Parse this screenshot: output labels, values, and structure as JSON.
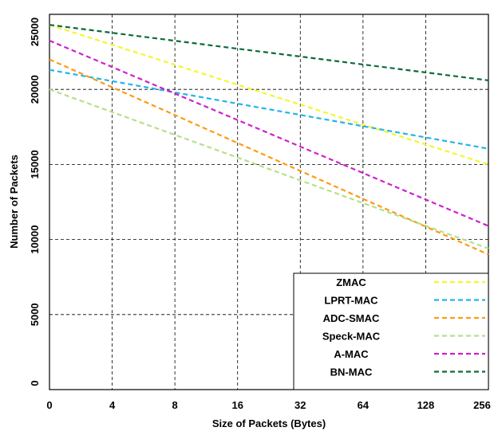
{
  "chart_data": {
    "type": "line",
    "xlabel": "Size of Packets (Bytes)",
    "ylabel": "Number of Packets",
    "categories": [
      "0",
      "4",
      "8",
      "16",
      "32",
      "64",
      "128",
      "256"
    ],
    "series": [
      {
        "name": "ZMAC",
        "color": "#f5f52e",
        "values": [
          24300,
          22970,
          21640,
          20310,
          18990,
          17660,
          16330,
          15000
        ]
      },
      {
        "name": "LPRT-MAC",
        "color": "#22b5e8",
        "values": [
          21300,
          20550,
          19800,
          19050,
          18300,
          17550,
          16800,
          16050
        ]
      },
      {
        "name": "ADC-SMAC",
        "color": "#ff9a10",
        "values": [
          22000,
          20140,
          18290,
          16430,
          14570,
          12710,
          10860,
          9000
        ]
      },
      {
        "name": "Speck-MAC",
        "color": "#b5e08a",
        "values": [
          20000,
          18490,
          16970,
          15460,
          13940,
          12430,
          10910,
          9400
        ]
      },
      {
        "name": "A-MAC",
        "color": "#cc22cc",
        "values": [
          23250,
          21490,
          19720,
          17960,
          16190,
          14430,
          12660,
          10900
        ]
      },
      {
        "name": "BN-MAC",
        "color": "#0a6b3a",
        "values": [
          24300,
          23770,
          23240,
          22710,
          22190,
          21660,
          21130,
          20600
        ]
      }
    ],
    "ylim": [
      0,
      25000
    ],
    "yticks": [
      0,
      5000,
      10000,
      15000,
      20000,
      25000
    ],
    "grid": true,
    "legend": "lower right"
  }
}
